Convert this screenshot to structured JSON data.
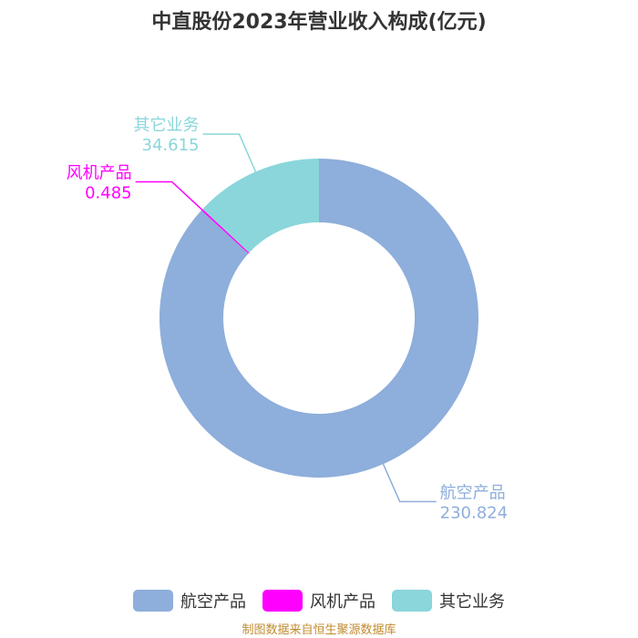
{
  "title": "中直股份2023年营业收入构成(亿元)",
  "source": "制图数据来自恒生聚源数据库",
  "chart_data": {
    "type": "pie",
    "style": "donut",
    "title": "中直股份2023年营业收入构成(亿元)",
    "series": [
      {
        "name": "航空产品",
        "value": 230.824,
        "label": "230.824",
        "color": "#8eaedb"
      },
      {
        "name": "风机产品",
        "value": 0.485,
        "label": "0.485",
        "color": "#ff00ff"
      },
      {
        "name": "其它业务",
        "value": 34.615,
        "label": "34.615",
        "color": "#8ad6db"
      }
    ],
    "legend": "bottom-center"
  }
}
